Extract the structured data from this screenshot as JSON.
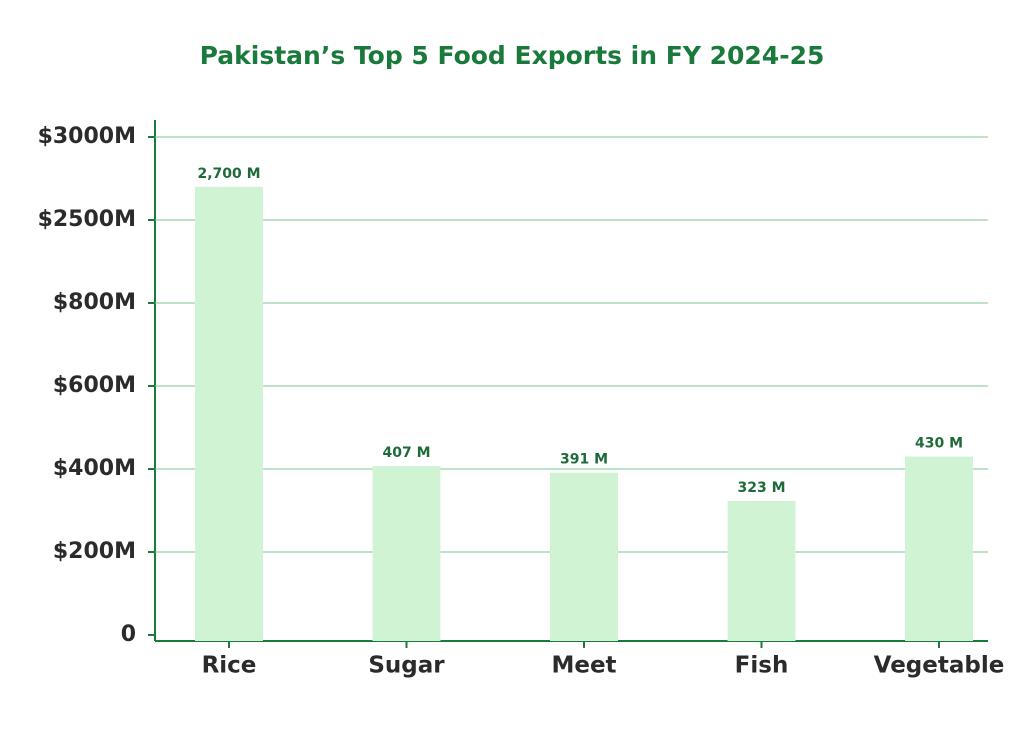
{
  "chart_data": {
    "type": "bar",
    "title": "Pakistan’s Top 5 Food Exports in FY 2024-25",
    "categories": [
      "Rice",
      "Sugar",
      "Meet",
      "Fish",
      "Vegetable"
    ],
    "values": [
      2700,
      407,
      391,
      323,
      430
    ],
    "value_labels": [
      "2,700 M",
      "407 M",
      "391 M",
      "323 M",
      "430 M"
    ],
    "color": "#d0f4d3",
    "ylim": [
      0,
      3000
    ],
    "yticks": [
      0,
      {
        "value": 200,
        "label": "$200M"
      },
      {
        "value": 400,
        "label": "$400M"
      },
      {
        "value": 600,
        "label": "$600M"
      },
      {
        "value": 800,
        "label": "$800M"
      },
      {
        "value": 2500,
        "label": "$2500M"
      },
      {
        "value": 3000,
        "label": "$3000M"
      }
    ],
    "grid": true
  }
}
